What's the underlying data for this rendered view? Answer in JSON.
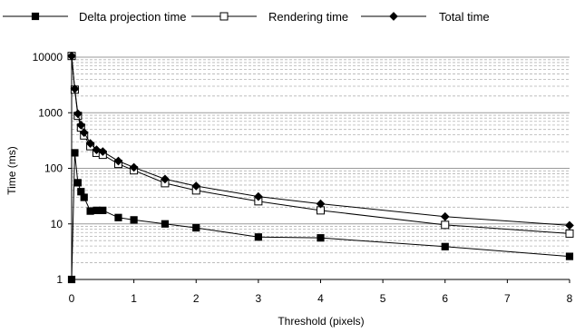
{
  "chart_data": {
    "type": "line",
    "title": "",
    "xlabel": "Threshold (pixels)",
    "ylabel": "Time (ms)",
    "x_scale": "linear",
    "y_scale": "log",
    "xlim": [
      0,
      8
    ],
    "ylim": [
      1,
      10000
    ],
    "x_ticks": [
      0,
      1,
      2,
      3,
      4,
      5,
      6,
      7,
      8
    ],
    "x_tick_labels": [
      "0",
      "1",
      "2",
      "3",
      "4",
      "5",
      "6",
      "7",
      "8"
    ],
    "y_ticks": [
      1,
      10,
      100,
      1000,
      10000
    ],
    "y_tick_labels": [
      "1",
      "10",
      "100",
      "1000",
      "10000"
    ],
    "grid": {
      "major_horizontal": true,
      "minor_horizontal": true,
      "minor_style": "dashed",
      "vertical": false
    },
    "legend_position": "top",
    "series": [
      {
        "name": "Delta projection time",
        "marker": "filled-square",
        "color": "#000000",
        "x": [
          0,
          0.05,
          0.1,
          0.15,
          0.2,
          0.3,
          0.4,
          0.5,
          0.75,
          1,
          1.5,
          2,
          3,
          4,
          6,
          8
        ],
        "y": [
          1,
          190,
          55,
          38,
          30,
          17,
          17.5,
          17.5,
          13,
          11.8,
          10,
          8.5,
          5.8,
          5.6,
          3.9,
          2.6
        ]
      },
      {
        "name": "Rendering time",
        "marker": "open-square",
        "color": "#000000",
        "x": [
          0,
          0.05,
          0.1,
          0.15,
          0.2,
          0.3,
          0.4,
          0.5,
          0.75,
          1,
          1.5,
          2,
          3,
          4,
          6,
          8
        ],
        "y": [
          10500,
          2600,
          880,
          540,
          390,
          250,
          190,
          175,
          120,
          92,
          54,
          40,
          25.5,
          17.5,
          9.6,
          6.7
        ]
      },
      {
        "name": "Total time",
        "marker": "filled-diamond",
        "color": "#000000",
        "x": [
          0,
          0.05,
          0.1,
          0.15,
          0.2,
          0.3,
          0.4,
          0.5,
          0.75,
          1,
          1.5,
          2,
          3,
          4,
          6,
          8
        ],
        "y": [
          10500,
          2700,
          960,
          600,
          440,
          280,
          215,
          200,
          135,
          104,
          64,
          48,
          31,
          23,
          13.5,
          9.4
        ]
      }
    ]
  }
}
